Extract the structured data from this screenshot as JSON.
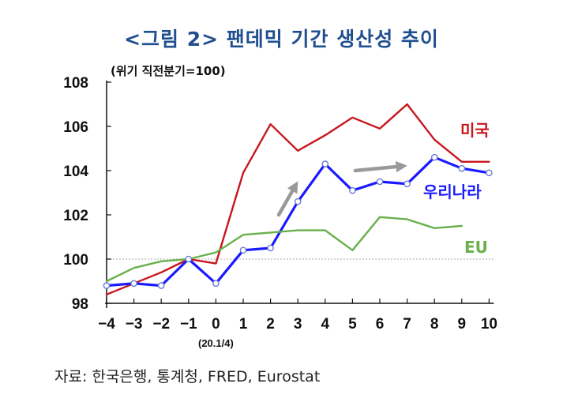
{
  "title": "<그림 2> 팬데믹 기간 생산성 추이",
  "unit_note": "(위기 직전분기=100)",
  "source": "자료: 한국은행, 통계청, FRED, Eurostat",
  "chart_data": {
    "type": "line",
    "title": "<그림 2> 팬데믹 기간 생산성 추이",
    "ylabel": "(위기 직전분기=100)",
    "xlabel": "",
    "x": [
      -4,
      -3,
      -2,
      -1,
      0,
      1,
      2,
      3,
      4,
      5,
      6,
      7,
      8,
      9,
      10
    ],
    "x_tick_labels": [
      "−4",
      "−3",
      "−2",
      "−1",
      "0",
      "1",
      "2",
      "3",
      "4",
      "5",
      "6",
      "7",
      "8",
      "9",
      "10"
    ],
    "x_sublabel": {
      "at": 0,
      "text": "(20.1/4)"
    },
    "ylim": [
      98,
      108
    ],
    "y_ticks": [
      98,
      100,
      102,
      104,
      106,
      108
    ],
    "reference_line": 100,
    "grid": false,
    "series": [
      {
        "name": "미국",
        "color": "#c8161d",
        "markers": false,
        "values": [
          98.4,
          98.9,
          99.4,
          100.0,
          99.8,
          103.9,
          106.1,
          104.9,
          105.6,
          106.4,
          105.9,
          107.0,
          105.4,
          104.4,
          104.4
        ]
      },
      {
        "name": "우리나라",
        "color": "#1a1aff",
        "markers": true,
        "values": [
          98.8,
          98.9,
          98.8,
          100.0,
          98.9,
          100.4,
          100.5,
          102.6,
          104.3,
          103.1,
          103.5,
          103.4,
          104.6,
          104.1,
          103.9
        ]
      },
      {
        "name": "EU",
        "color": "#6ab04c",
        "markers": false,
        "values": [
          99.0,
          99.6,
          99.9,
          100.0,
          100.3,
          101.1,
          101.2,
          101.3,
          101.3,
          100.4,
          101.9,
          101.8,
          101.4,
          101.5,
          null
        ]
      }
    ],
    "annotations": [
      {
        "type": "arrow",
        "color": "#999999",
        "description": "rising trend arrow",
        "from": [
          2.3,
          102.0
        ],
        "to": [
          2.9,
          103.3
        ]
      },
      {
        "type": "arrow",
        "color": "#999999",
        "description": "flat trend arrow",
        "from": [
          5.1,
          104.0
        ],
        "to": [
          6.8,
          104.2
        ]
      }
    ]
  }
}
